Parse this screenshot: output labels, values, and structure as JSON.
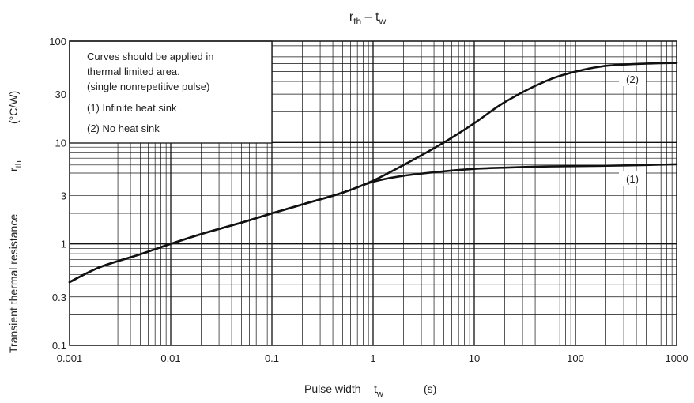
{
  "chart_data": {
    "type": "line",
    "title": {
      "main": "r",
      "sub1": "th",
      "sep": " – ",
      "main2": "t",
      "sub2": "w"
    },
    "xlabel": {
      "text": "Pulse width",
      "sym": "t",
      "sub": "w",
      "unit": "(s)"
    },
    "ylabel": {
      "text": "Transient thermal resistance",
      "sym": "r",
      "sub": "th",
      "unit": "(°C/W)"
    },
    "x_scale": "log",
    "y_scale": "log",
    "xlim": [
      0.001,
      1000
    ],
    "ylim": [
      0.1,
      100
    ],
    "x_ticks": [
      {
        "value": 0.001,
        "label": "0.001"
      },
      {
        "value": 0.01,
        "label": "0.01"
      },
      {
        "value": 0.1,
        "label": "0.1"
      },
      {
        "value": 1,
        "label": "1"
      },
      {
        "value": 10,
        "label": "10"
      },
      {
        "value": 100,
        "label": "100"
      },
      {
        "value": 1000,
        "label": "1000"
      }
    ],
    "y_ticks": [
      {
        "value": 0.1,
        "label": "0.1"
      },
      {
        "value": 0.3,
        "label": "0.3"
      },
      {
        "value": 1,
        "label": "1"
      },
      {
        "value": 3,
        "label": "3"
      },
      {
        "value": 10,
        "label": "10"
      },
      {
        "value": 30,
        "label": "30"
      },
      {
        "value": 100,
        "label": "100"
      }
    ],
    "grid": true,
    "series": [
      {
        "name": "(1)",
        "x": [
          0.001,
          0.002,
          0.005,
          0.01,
          0.02,
          0.05,
          0.1,
          0.2,
          0.5,
          1,
          2,
          5,
          10,
          20,
          50,
          100,
          200,
          500,
          1000
        ],
        "y": [
          0.42,
          0.59,
          0.79,
          1.0,
          1.25,
          1.62,
          2.0,
          2.45,
          3.2,
          4.1,
          4.7,
          5.2,
          5.5,
          5.65,
          5.8,
          5.85,
          5.9,
          6.0,
          6.1
        ]
      },
      {
        "name": "(2)",
        "x": [
          0.001,
          0.002,
          0.005,
          0.01,
          0.02,
          0.05,
          0.1,
          0.2,
          0.5,
          1,
          2,
          5,
          10,
          20,
          50,
          100,
          200,
          500,
          1000
        ],
        "y": [
          0.42,
          0.59,
          0.79,
          1.0,
          1.25,
          1.62,
          2.0,
          2.45,
          3.2,
          4.2,
          6.0,
          10.0,
          15.5,
          25.0,
          40.0,
          50.0,
          57.0,
          60.0,
          61.0
        ]
      }
    ],
    "curve_labels": [
      {
        "text": "(1)",
        "x": 180,
        "y": 5.1
      },
      {
        "text": "(2)",
        "x": 180,
        "y": 50
      }
    ],
    "legend_box": {
      "placement": "top-left",
      "lines": [
        "Curves should be applied in",
        "thermal limited area.",
        "(single nonrepetitive pulse)",
        "(1) Infinite heat sink",
        "(2) No heat sink"
      ]
    },
    "colors": {
      "curve": "#111111",
      "grid": "#111111",
      "frame": "#111111",
      "text": "#222222"
    }
  }
}
